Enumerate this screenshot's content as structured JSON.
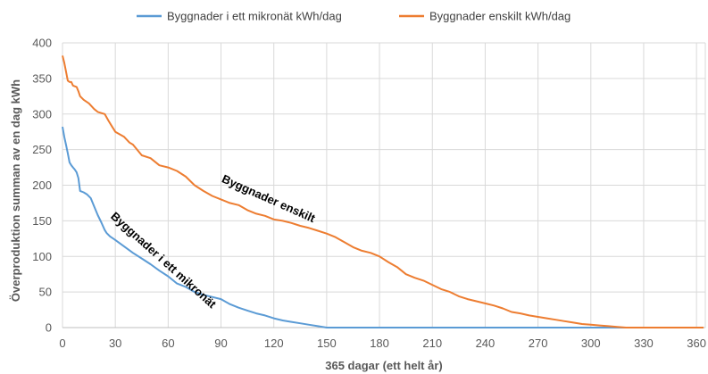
{
  "chart_data": {
    "type": "line",
    "xlabel": "365 dagar (ett helt år)",
    "ylabel": "Överproduktion summan av en dag kWh",
    "xlim": [
      0,
      365
    ],
    "ylim": [
      0,
      400
    ],
    "xticks": [
      0,
      30,
      60,
      90,
      120,
      150,
      180,
      210,
      240,
      270,
      300,
      330,
      360
    ],
    "yticks": [
      0,
      50,
      100,
      150,
      200,
      250,
      300,
      350,
      400
    ],
    "grid": true,
    "legend_position": "top",
    "annotations": [
      {
        "text": "Byggnader enskilt",
        "x": 90,
        "y": 205,
        "rotation_deg": 24
      },
      {
        "text": "Byggnader i ett mikronät",
        "x": 27,
        "y": 155,
        "rotation_deg": 42
      }
    ],
    "series": [
      {
        "name": "Byggnader i ett mikronät kWh/dag",
        "color": "#5b9bd5",
        "x": [
          0,
          1,
          2,
          3,
          4,
          5,
          6,
          7,
          8,
          9,
          10,
          12,
          14,
          16,
          18,
          20,
          22,
          24,
          25,
          27,
          30,
          35,
          40,
          45,
          50,
          55,
          60,
          65,
          70,
          75,
          80,
          85,
          90,
          95,
          100,
          105,
          110,
          115,
          120,
          125,
          130,
          135,
          140,
          145,
          150,
          160,
          180,
          200,
          240,
          300,
          364
        ],
        "values": [
          282,
          268,
          257,
          245,
          232,
          228,
          225,
          222,
          218,
          210,
          192,
          190,
          187,
          182,
          170,
          158,
          148,
          137,
          133,
          128,
          123,
          114,
          105,
          97,
          89,
          80,
          72,
          62,
          57,
          50,
          46,
          43,
          40,
          33,
          28,
          24,
          20,
          17,
          13,
          10,
          8,
          6,
          4,
          2,
          0,
          0,
          0,
          0,
          0,
          0,
          0
        ]
      },
      {
        "name": "Byggnader enskilt kWh/dag",
        "color": "#ed7d31",
        "x": [
          0,
          1,
          2,
          3,
          4,
          5,
          6,
          8,
          9,
          10,
          12,
          15,
          18,
          20,
          24,
          26,
          28,
          30,
          35,
          38,
          40,
          45,
          50,
          55,
          60,
          65,
          70,
          75,
          80,
          85,
          90,
          95,
          100,
          105,
          110,
          115,
          120,
          125,
          130,
          135,
          140,
          145,
          150,
          155,
          160,
          165,
          170,
          175,
          180,
          185,
          190,
          195,
          200,
          205,
          210,
          215,
          220,
          225,
          230,
          235,
          240,
          245,
          250,
          255,
          260,
          265,
          270,
          275,
          280,
          285,
          290,
          295,
          300,
          305,
          310,
          315,
          320,
          330,
          345,
          364
        ],
        "values": [
          382,
          372,
          360,
          347,
          345,
          345,
          340,
          338,
          332,
          325,
          320,
          315,
          307,
          303,
          300,
          291,
          283,
          275,
          268,
          260,
          257,
          242,
          238,
          228,
          225,
          220,
          212,
          200,
          192,
          185,
          180,
          175,
          172,
          165,
          160,
          157,
          152,
          150,
          147,
          143,
          140,
          136,
          132,
          127,
          120,
          113,
          108,
          105,
          100,
          92,
          85,
          75,
          70,
          66,
          60,
          54,
          50,
          44,
          40,
          37,
          34,
          31,
          27,
          22,
          20,
          17,
          15,
          13,
          11,
          9,
          7,
          5,
          4,
          3,
          2,
          1,
          0,
          0,
          0,
          0
        ]
      }
    ]
  }
}
